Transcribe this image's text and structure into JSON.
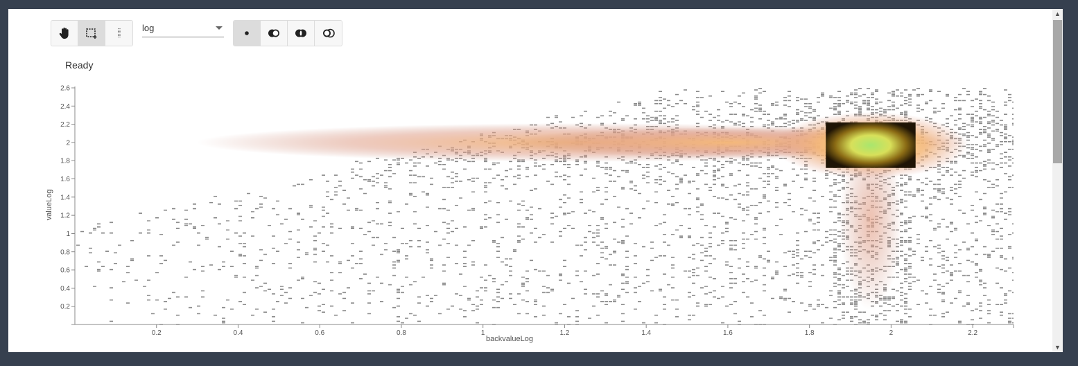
{
  "toolbar": {
    "tools": [
      {
        "name": "pan",
        "icon": "hand-icon",
        "active": false
      },
      {
        "name": "select-rectangle",
        "icon": "rectangle-select-icon",
        "active": true
      },
      {
        "name": "select-lasso",
        "icon": "dotted-line-icon",
        "active": false
      }
    ],
    "scale_select": {
      "value": "log"
    },
    "modes": [
      {
        "name": "replace",
        "icon": "dot-icon",
        "active": true
      },
      {
        "name": "or",
        "icon": "union-icon",
        "active": false
      },
      {
        "name": "and",
        "icon": "intersect-icon",
        "active": false
      },
      {
        "name": "subtract",
        "icon": "subtract-icon",
        "active": false
      }
    ]
  },
  "status": "Ready",
  "colors": {
    "sparse_bin": "#8a8a8a",
    "density_low": "#c98a7a",
    "density_mid": "#f5b878",
    "density_high": "#ffe07a",
    "selection_core": "#a8e66e",
    "selection_edge": "#1f1405"
  },
  "chart_data": {
    "type": "heatmap",
    "xlabel": "backvalueLog",
    "ylabel": "valueLog",
    "xlim": [
      0,
      2.3
    ],
    "ylim": [
      0,
      2.6
    ],
    "x_ticks": [
      "0.2",
      "0.4",
      "0.6",
      "0.8",
      "1",
      "1.2",
      "1.4",
      "1.6",
      "1.8",
      "2",
      "2.2"
    ],
    "y_ticks": [
      "0.2",
      "0.4",
      "0.6",
      "0.8",
      "1",
      "1.2",
      "1.4",
      "1.6",
      "1.8",
      "2",
      "2.2",
      "2.4",
      "2.6"
    ],
    "density_ridge": {
      "x_range": [
        0.5,
        2.3
      ],
      "y_at_x": [
        [
          0.5,
          1.85
        ],
        [
          1.0,
          1.95
        ],
        [
          1.5,
          2.0
        ],
        [
          2.0,
          2.02
        ],
        [
          2.2,
          2.05
        ]
      ]
    },
    "density_peak": {
      "x": 1.95,
      "y": 1.97
    },
    "density_tail": {
      "x": 1.95,
      "y_range": [
        0.3,
        1.9
      ]
    },
    "selection": {
      "x_range": [
        1.84,
        2.06
      ],
      "y_range": [
        1.72,
        2.22
      ]
    },
    "legend": "none",
    "grid": false
  }
}
